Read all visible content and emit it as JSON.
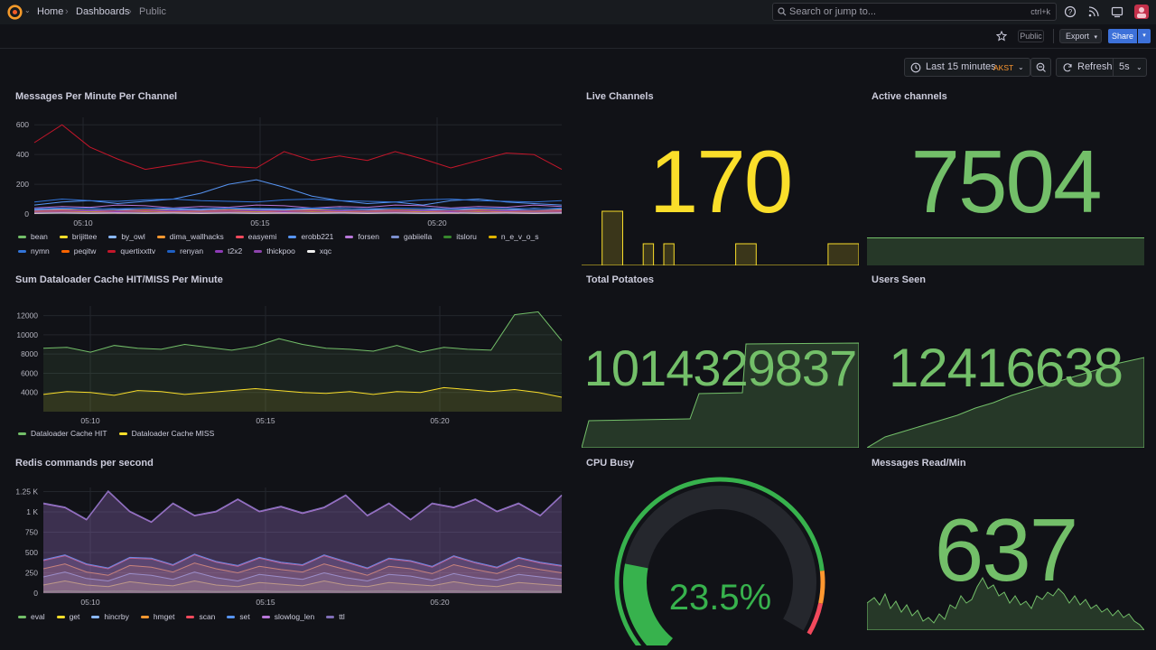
{
  "breadcrumb": {
    "home": "Home",
    "dashboards": "Dashboards",
    "current": "Public"
  },
  "search": {
    "placeholder": "Search or jump to...",
    "shortcut": "ctrl+k"
  },
  "toolbar": {
    "public_badge": "Public",
    "export_label": "Export",
    "share_label": "Share"
  },
  "time": {
    "range_label": "Last 15 minutes",
    "timezone": "AKST",
    "refresh_label": "Refresh",
    "refresh_interval": "5s"
  },
  "colors": {
    "green": "#73bf69",
    "yellow": "#fade2a",
    "red": "#f2495c",
    "orange": "#ff9830",
    "blue": "#5794f2",
    "purple": "#b877d9"
  },
  "panels": {
    "messages_per_minute": {
      "title": "Messages Per Minute Per Channel",
      "chart_data": {
        "type": "line",
        "x_ticks": [
          "05:10",
          "05:15",
          "05:20"
        ],
        "ylim": [
          0,
          650
        ],
        "y_ticks": [
          0,
          200,
          400,
          600
        ],
        "series": [
          {
            "name": "bean",
            "color": "#73bf69",
            "values": [
              20,
              25,
              18,
              22,
              30,
              20,
              25,
              18,
              22,
              20,
              25,
              22,
              18,
              20,
              25,
              22,
              20,
              24,
              18,
              22
            ]
          },
          {
            "name": "brijittee",
            "color": "#fade2a",
            "values": [
              10,
              12,
              15,
              10,
              8,
              12,
              10,
              15,
              12,
              10,
              8,
              12,
              10,
              12,
              15,
              10,
              12,
              10,
              8,
              12
            ]
          },
          {
            "name": "by_owl",
            "color": "#8ab8ff",
            "values": [
              30,
              35,
              40,
              32,
              28,
              35,
              30,
              38,
              32,
              30,
              35,
              40,
              32,
              30,
              28,
              35,
              32,
              30,
              38,
              35
            ]
          },
          {
            "name": "dima_wallhacks",
            "color": "#ff9830",
            "values": [
              15,
              18,
              20,
              15,
              12,
              18,
              15,
              20,
              18,
              15,
              12,
              18,
              15,
              20,
              18,
              15,
              12,
              18,
              15,
              18
            ]
          },
          {
            "name": "easyemi",
            "color": "#f2495c",
            "values": [
              5,
              8,
              6,
              5,
              7,
              6,
              5,
              8,
              6,
              5,
              7,
              6,
              5,
              8,
              6,
              5,
              7,
              6,
              5,
              8
            ]
          },
          {
            "name": "erobb221",
            "color": "#5794f2",
            "values": [
              60,
              80,
              90,
              70,
              85,
              100,
              140,
              200,
              230,
              180,
              120,
              90,
              70,
              80,
              60,
              90,
              100,
              80,
              70,
              60
            ]
          },
          {
            "name": "forsen",
            "color": "#b877d9",
            "values": [
              40,
              50,
              45,
              60,
              55,
              40,
              50,
              45,
              60,
              55,
              40,
              50,
              45,
              60,
              55,
              40,
              50,
              45,
              60,
              50
            ]
          },
          {
            "name": "gabiiella",
            "color": "#7b8fcf",
            "values": [
              25,
              30,
              28,
              25,
              30,
              28,
              25,
              30,
              28,
              25,
              30,
              28,
              25,
              30,
              28,
              25,
              30,
              28,
              25,
              30
            ]
          },
          {
            "name": "itsloru",
            "color": "#37872d",
            "values": [
              8,
              10,
              12,
              8,
              10,
              12,
              8,
              10,
              12,
              8,
              10,
              12,
              8,
              10,
              12,
              8,
              10,
              12,
              8,
              10
            ]
          },
          {
            "name": "n_e_v_o_s",
            "color": "#e0b400",
            "values": [
              12,
              15,
              10,
              12,
              15,
              10,
              12,
              15,
              10,
              12,
              15,
              10,
              12,
              15,
              10,
              12,
              15,
              10,
              12,
              15
            ]
          },
          {
            "name": "nymn",
            "color": "#3274d9",
            "values": [
              80,
              100,
              90,
              85,
              95,
              100,
              90,
              85,
              80,
              95,
              100,
              90,
              85,
              80,
              95,
              100,
              90,
              85,
              80,
              90
            ]
          },
          {
            "name": "peqitw",
            "color": "#fa6400",
            "values": [
              20,
              25,
              22,
              20,
              25,
              22,
              20,
              25,
              22,
              20,
              25,
              22,
              20,
              25,
              22,
              20,
              25,
              22,
              20,
              25
            ]
          },
          {
            "name": "quertixxttv",
            "color": "#c4162a",
            "values": [
              480,
              600,
              450,
              370,
              300,
              330,
              360,
              320,
              310,
              420,
              360,
              390,
              360,
              420,
              370,
              310,
              360,
              410,
              400,
              300
            ]
          },
          {
            "name": "renyan",
            "color": "#1f60c4",
            "values": [
              35,
              40,
              38,
              35,
              40,
              38,
              35,
              40,
              38,
              35,
              40,
              38,
              35,
              40,
              38,
              35,
              40,
              38,
              35,
              40
            ]
          },
          {
            "name": "t2x2",
            "color": "#8f3bb8",
            "values": [
              18,
              20,
              22,
              18,
              20,
              22,
              18,
              20,
              22,
              18,
              20,
              22,
              18,
              20,
              22,
              18,
              20,
              22,
              18,
              20
            ]
          },
          {
            "name": "thickpoo",
            "color": "#8e44ad",
            "values": [
              10,
              12,
              10,
              12,
              10,
              12,
              10,
              12,
              10,
              12,
              10,
              12,
              10,
              12,
              10,
              12,
              10,
              12,
              10,
              12
            ]
          },
          {
            "name": "xqc",
            "color": "#f0f0f0",
            "values": [
              5,
              6,
              5,
              6,
              5,
              6,
              5,
              6,
              5,
              6,
              5,
              6,
              5,
              6,
              5,
              6,
              5,
              6,
              5,
              6
            ]
          }
        ]
      }
    },
    "live_channels": {
      "title": "Live Channels",
      "value": "170",
      "sparkline": [
        0,
        0,
        1,
        1,
        0,
        0,
        0.4,
        0,
        0.4,
        0,
        0,
        0,
        0,
        0,
        0,
        0.4,
        0.4,
        0,
        0,
        0,
        0,
        0,
        0,
        0,
        0.4,
        0.4,
        0.4
      ]
    },
    "active_channels": {
      "title": "Active channels",
      "value": "7504"
    },
    "dataloader_cache": {
      "title": "Sum Dataloader Cache HIT/MISS Per Minute",
      "chart_data": {
        "type": "line",
        "x_ticks": [
          "05:10",
          "05:15",
          "05:20"
        ],
        "ylim": [
          2000,
          13000
        ],
        "y_ticks": [
          4000,
          6000,
          8000,
          10000,
          12000
        ],
        "series": [
          {
            "name": "Dataloader Cache HIT",
            "color": "#73bf69",
            "values": [
              8600,
              8700,
              8200,
              8900,
              8600,
              8500,
              9000,
              8700,
              8400,
              8800,
              9600,
              9000,
              8600,
              8500,
              8300,
              8900,
              8200,
              8700,
              8500,
              8400,
              12100,
              12400,
              9400
            ]
          },
          {
            "name": "Dataloader Cache MISS",
            "color": "#fade2a",
            "values": [
              3800,
              4100,
              4000,
              3700,
              4200,
              4100,
              3800,
              4000,
              4200,
              4400,
              4200,
              4000,
              3900,
              4100,
              3800,
              4100,
              4000,
              4500,
              4300,
              4100,
              4300,
              4000,
              3500
            ]
          }
        ]
      }
    },
    "total_potatoes": {
      "title": "Total Potatoes",
      "value": "1014329837"
    },
    "users_seen": {
      "title": "Users Seen",
      "value": "12416638"
    },
    "redis_commands": {
      "title": "Redis commands per second",
      "chart_data": {
        "type": "area",
        "x_ticks": [
          "05:10",
          "05:15",
          "05:20"
        ],
        "ylim": [
          0,
          1300
        ],
        "y_ticks": [
          "0",
          "250",
          "500",
          "750",
          "1 K",
          "1.25 K"
        ],
        "series": [
          {
            "name": "eval",
            "color": "#73bf69",
            "values": [
              20,
              25,
              20,
              22,
              25,
              20,
              22,
              25,
              20,
              22,
              25,
              20,
              22,
              25,
              20,
              22,
              25,
              20,
              22,
              25,
              20,
              22,
              25,
              20,
              22
            ]
          },
          {
            "name": "get",
            "color": "#fade2a",
            "values": [
              100,
              150,
              100,
              80,
              140,
              110,
              90,
              150,
              100,
              80,
              130,
              110,
              90,
              150,
              100,
              80,
              130,
              110,
              90,
              140,
              100,
              80,
              130,
              110,
              90
            ]
          },
          {
            "name": "hincrby",
            "color": "#8ab8ff",
            "values": [
              200,
              260,
              180,
              150,
              240,
              220,
              170,
              260,
              190,
              150,
              230,
              200,
              170,
              250,
              190,
              150,
              230,
              210,
              160,
              240,
              190,
              160,
              230,
              200,
              170
            ]
          },
          {
            "name": "hmget",
            "color": "#ff9830",
            "values": [
              300,
              360,
              260,
              220,
              340,
              320,
              260,
              370,
              300,
              250,
              330,
              290,
              260,
              360,
              290,
              220,
              330,
              300,
              240,
              350,
              290,
              240,
              340,
              290,
              250
            ]
          },
          {
            "name": "scan",
            "color": "#f2495c",
            "values": [
              400,
              460,
              350,
              300,
              430,
              420,
              340,
              470,
              380,
              330,
              430,
              370,
              340,
              460,
              380,
              300,
              420,
              390,
              320,
              450,
              370,
              310,
              430,
              370,
              330
            ]
          },
          {
            "name": "set",
            "color": "#5794f2",
            "values": [
              410,
              470,
              360,
              310,
              440,
              430,
              350,
              480,
              390,
              340,
              440,
              380,
              350,
              470,
              390,
              310,
              430,
              400,
              330,
              460,
              380,
              320,
              440,
              380,
              340
            ]
          },
          {
            "name": "slowlog_len",
            "color": "#b877d9",
            "values": [
              1100,
              1050,
              900,
              1250,
              1000,
              870,
              1100,
              950,
              1000,
              1150,
              1000,
              1060,
              980,
              1050,
              1200,
              950,
              1100,
              900,
              1100,
              1050,
              1150,
              1000,
              1100,
              950,
              1200
            ]
          },
          {
            "name": "ttl",
            "color": "#806eb7",
            "values": [
              1110,
              1060,
              910,
              1260,
              1010,
              880,
              1110,
              960,
              1010,
              1160,
              1010,
              1070,
              990,
              1060,
              1210,
              960,
              1110,
              910,
              1110,
              1060,
              1160,
              1010,
              1110,
              960,
              1210
            ]
          }
        ]
      }
    },
    "cpu_busy": {
      "title": "CPU Busy",
      "value": "23.5%",
      "percent": 23.5
    },
    "messages_read": {
      "title": "Messages Read/Min",
      "value": "637"
    }
  }
}
